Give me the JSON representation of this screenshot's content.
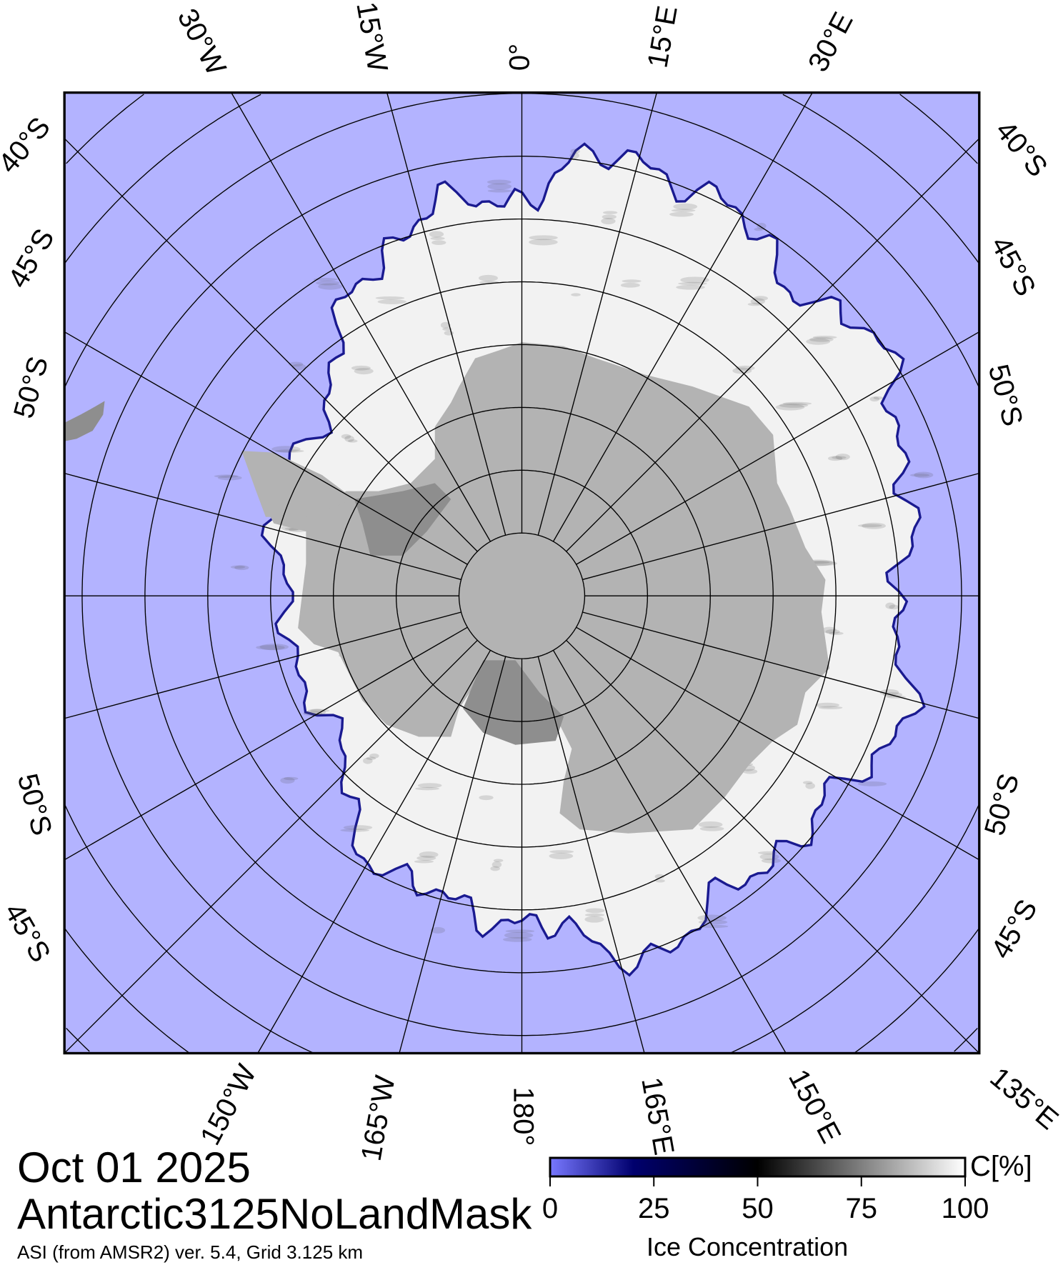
{
  "title": {
    "date": "Oct 01 2025",
    "product": "Antarctic3125NoLandMask",
    "version": "ASI (from AMSR2) ver. 5.4,  Grid 3.125 km"
  },
  "map": {
    "projection": "south polar stereographic",
    "meridian_labels": [
      {
        "label": "30°W",
        "lon": -30
      },
      {
        "label": "15°W",
        "lon": -15
      },
      {
        "label": "0°",
        "lon": 0
      },
      {
        "label": "15°E",
        "lon": 15
      },
      {
        "label": "30°E",
        "lon": 30
      },
      {
        "label": "150°W",
        "lon": -150
      },
      {
        "label": "165°W",
        "lon": -165
      },
      {
        "label": "180°",
        "lon": 180
      },
      {
        "label": "165°E",
        "lon": 165
      },
      {
        "label": "150°E",
        "lon": 150
      },
      {
        "label": "135°E",
        "lon": 135
      }
    ],
    "latitude_labels_left": [
      "40°S",
      "45°S",
      "50°S",
      "50°S",
      "45°S"
    ],
    "latitude_labels_right": [
      "40°S",
      "45°S",
      "50°S",
      "50°S",
      "45°S"
    ],
    "graticule": {
      "meridian_step_deg": 15,
      "parallel_step_deg": 5
    },
    "colors": {
      "ocean": "#b3b3ff",
      "land": "#b3b3b3",
      "ice_shelf": "#8e8e8e",
      "ice": "#f4f4f4",
      "ice_edge": "#1a1a90"
    }
  },
  "colorbar": {
    "ticks": [
      "0",
      "25",
      "50",
      "75",
      "100"
    ],
    "unit": "C[%]",
    "label": "Ice Concentration",
    "range": [
      0,
      100
    ],
    "colors": {
      "0": "#7878ff",
      "20": "#00006e",
      "50": "#000000",
      "100": "#ffffff"
    }
  }
}
